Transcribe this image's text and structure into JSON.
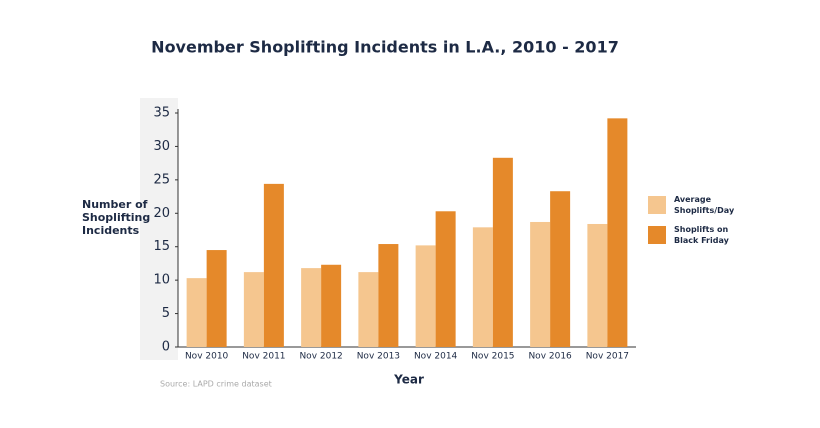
{
  "chart_data": {
    "type": "bar",
    "title": "November Shoplifting Incidents in L.A., 2010 - 2017",
    "x_label": "Year",
    "y_label": "Number of Shoplifting Incidents",
    "source": "Source: LAPD crime dataset",
    "categories": [
      "Nov 2010",
      "Nov 2011",
      "Nov 2012",
      "Nov 2013",
      "Nov 2014",
      "Nov 2015",
      "Nov 2016",
      "Nov 2017"
    ],
    "series": [
      {
        "name": "Average Shoplifts/Day",
        "color": "#f5c68f",
        "values": [
          10.3,
          11.2,
          11.8,
          11.2,
          15.2,
          17.9,
          18.7,
          18.4
        ]
      },
      {
        "name": "Shoplifts on Black Friday",
        "color": "#e5892a",
        "values": [
          14.5,
          24.4,
          12.3,
          15.4,
          20.3,
          28.3,
          23.3,
          34.2
        ]
      }
    ],
    "ylim": [
      0,
      35
    ],
    "yticks": [
      0,
      5,
      10,
      15,
      20,
      25,
      30,
      35
    ],
    "grid": false
  }
}
